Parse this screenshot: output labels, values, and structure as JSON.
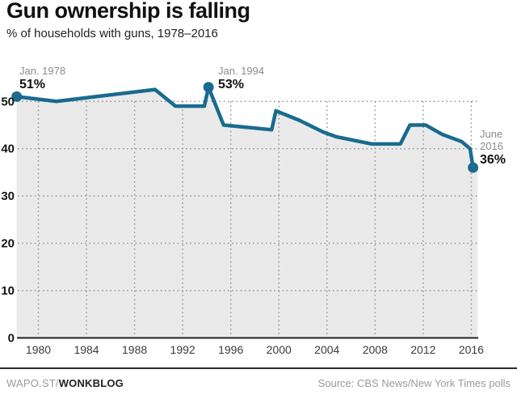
{
  "header": {
    "title": "Gun ownership is falling",
    "subtitle": "% of households with guns, 1978–2016"
  },
  "annotations": {
    "first": {
      "date": "Jan. 1978",
      "value": "51%"
    },
    "peak": {
      "date": "Jan. 1994",
      "value": "53%"
    },
    "last": {
      "date_line1": "June",
      "date_line2": "2016",
      "value": "36%"
    }
  },
  "footer": {
    "brand_prefix": "WAPO.ST/",
    "brand_name": "WONKBLOG",
    "source": "Source: CBS News/New York Times polls"
  },
  "colors": {
    "line": "#196b8f",
    "marker": "#196b8f",
    "area_fill": "#eaeaea",
    "grid": "#949494",
    "axis_line": "#222222",
    "x_tick_label": "#3a3a3a",
    "y_tick_label": "#141414",
    "annotation_date": "#8a8a8a",
    "annotation_value": "#111111"
  },
  "chart_data": {
    "type": "area",
    "title": "Gun ownership is falling",
    "subtitle": "% of households with guns, 1978–2016",
    "xlabel": "",
    "ylabel": "% of households with guns",
    "xlim": [
      1978,
      2017
    ],
    "ylim": [
      0,
      55
    ],
    "x_ticks": [
      1980,
      1984,
      1988,
      1992,
      1996,
      2000,
      2004,
      2008,
      2012,
      2016
    ],
    "y_ticks": [
      0,
      10,
      20,
      30,
      40,
      50
    ],
    "grid": true,
    "grid_style": "dotted",
    "legend": "none",
    "series_name": "% of households with guns (CBS News/New York Times polls)",
    "points": [
      {
        "year": 1978.2,
        "value": 51
      },
      {
        "year": 1981.5,
        "value": 50
      },
      {
        "year": 1989.7,
        "value": 52.5
      },
      {
        "year": 1991.4,
        "value": 49
      },
      {
        "year": 1993.8,
        "value": 49
      },
      {
        "year": 1994.15,
        "value": 53
      },
      {
        "year": 1995.4,
        "value": 45
      },
      {
        "year": 1999.4,
        "value": 44
      },
      {
        "year": 1999.75,
        "value": 48
      },
      {
        "year": 2001.7,
        "value": 46
      },
      {
        "year": 2003.7,
        "value": 43.5
      },
      {
        "year": 2004.8,
        "value": 42.5
      },
      {
        "year": 2007.7,
        "value": 41
      },
      {
        "year": 2010.1,
        "value": 41
      },
      {
        "year": 2010.9,
        "value": 45
      },
      {
        "year": 2012.2,
        "value": 45
      },
      {
        "year": 2013.6,
        "value": 43
      },
      {
        "year": 2015.2,
        "value": 41.5
      },
      {
        "year": 2015.9,
        "value": 40
      },
      {
        "year": 2016.15,
        "value": 36
      }
    ],
    "marked_points": [
      {
        "year": 1978.2,
        "value": 51,
        "label": "Jan. 1978"
      },
      {
        "year": 1994.15,
        "value": 53,
        "label": "Jan. 1994"
      },
      {
        "year": 2016.15,
        "value": 36,
        "label": "June 2016"
      }
    ]
  }
}
